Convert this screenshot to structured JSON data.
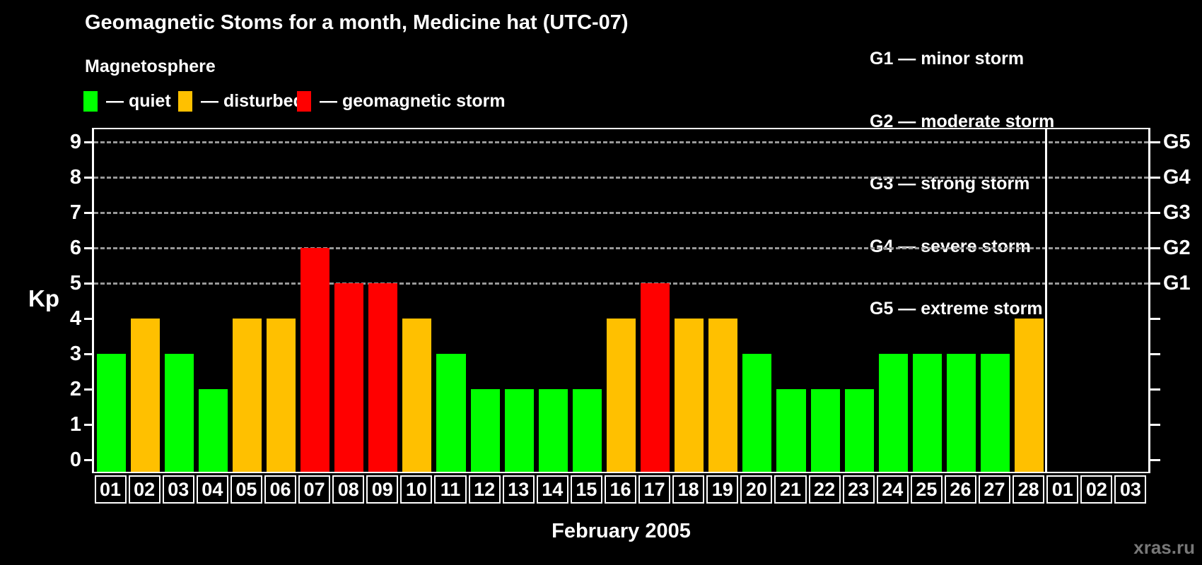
{
  "header": {
    "title": "Geomagnetic Stoms for a month, Medicine hat (UTC-07)",
    "subtitle": "Magnetosphere"
  },
  "legend": {
    "items": [
      {
        "status": "quiet",
        "label": "— quiet",
        "color": "#00ff00"
      },
      {
        "status": "disturbed",
        "label": "— disturbed",
        "color": "#ffc000"
      },
      {
        "status": "storm",
        "label": "— geomagnetic storm",
        "color": "#ff0000"
      }
    ]
  },
  "g_scale_legend": [
    "G1 — minor storm",
    "G2 — moderate storm",
    "G3 — strong storm",
    "G4 — severe storm",
    "G5 — extreme storm"
  ],
  "watermark": "xras.ru",
  "chart_data": {
    "type": "bar",
    "title": "Geomagnetic Stoms for a month, Medicine hat (UTC-07)",
    "xlabel": "February 2005",
    "ylabel": "Kp",
    "ylim": [
      0,
      9
    ],
    "yticks": [
      0,
      1,
      2,
      3,
      4,
      5,
      6,
      7,
      8,
      9
    ],
    "gridlines_at": [
      5,
      6,
      7,
      8,
      9
    ],
    "grid_style": "dashed",
    "right_axis_labels": [
      {
        "kp": 5,
        "label": "G1"
      },
      {
        "kp": 6,
        "label": "G2"
      },
      {
        "kp": 7,
        "label": "G3"
      },
      {
        "kp": 8,
        "label": "G4"
      },
      {
        "kp": 9,
        "label": "G5"
      }
    ],
    "categories": [
      "01",
      "02",
      "03",
      "04",
      "05",
      "06",
      "07",
      "08",
      "09",
      "10",
      "11",
      "12",
      "13",
      "14",
      "15",
      "16",
      "17",
      "18",
      "19",
      "20",
      "21",
      "22",
      "23",
      "24",
      "25",
      "26",
      "27",
      "28",
      "01",
      "02",
      "03"
    ],
    "values": [
      3,
      4,
      3,
      2,
      4,
      4,
      6,
      5,
      5,
      4,
      3,
      2,
      2,
      2,
      2,
      4,
      5,
      4,
      4,
      3,
      2,
      2,
      2,
      3,
      3,
      3,
      3,
      4,
      null,
      null,
      null
    ],
    "statuses": [
      "quiet",
      "disturbed",
      "quiet",
      "quiet",
      "disturbed",
      "disturbed",
      "storm",
      "storm",
      "storm",
      "disturbed",
      "quiet",
      "quiet",
      "quiet",
      "quiet",
      "quiet",
      "disturbed",
      "storm",
      "disturbed",
      "disturbed",
      "quiet",
      "quiet",
      "quiet",
      "quiet",
      "quiet",
      "quiet",
      "quiet",
      "quiet",
      "disturbed",
      null,
      null,
      null
    ],
    "month_separator_after_index": 27,
    "colors": {
      "quiet": "#00ff00",
      "disturbed": "#ffc000",
      "storm": "#ff0000"
    },
    "background": "#000000",
    "gridline_color": "#999999",
    "legend_position": "top"
  }
}
